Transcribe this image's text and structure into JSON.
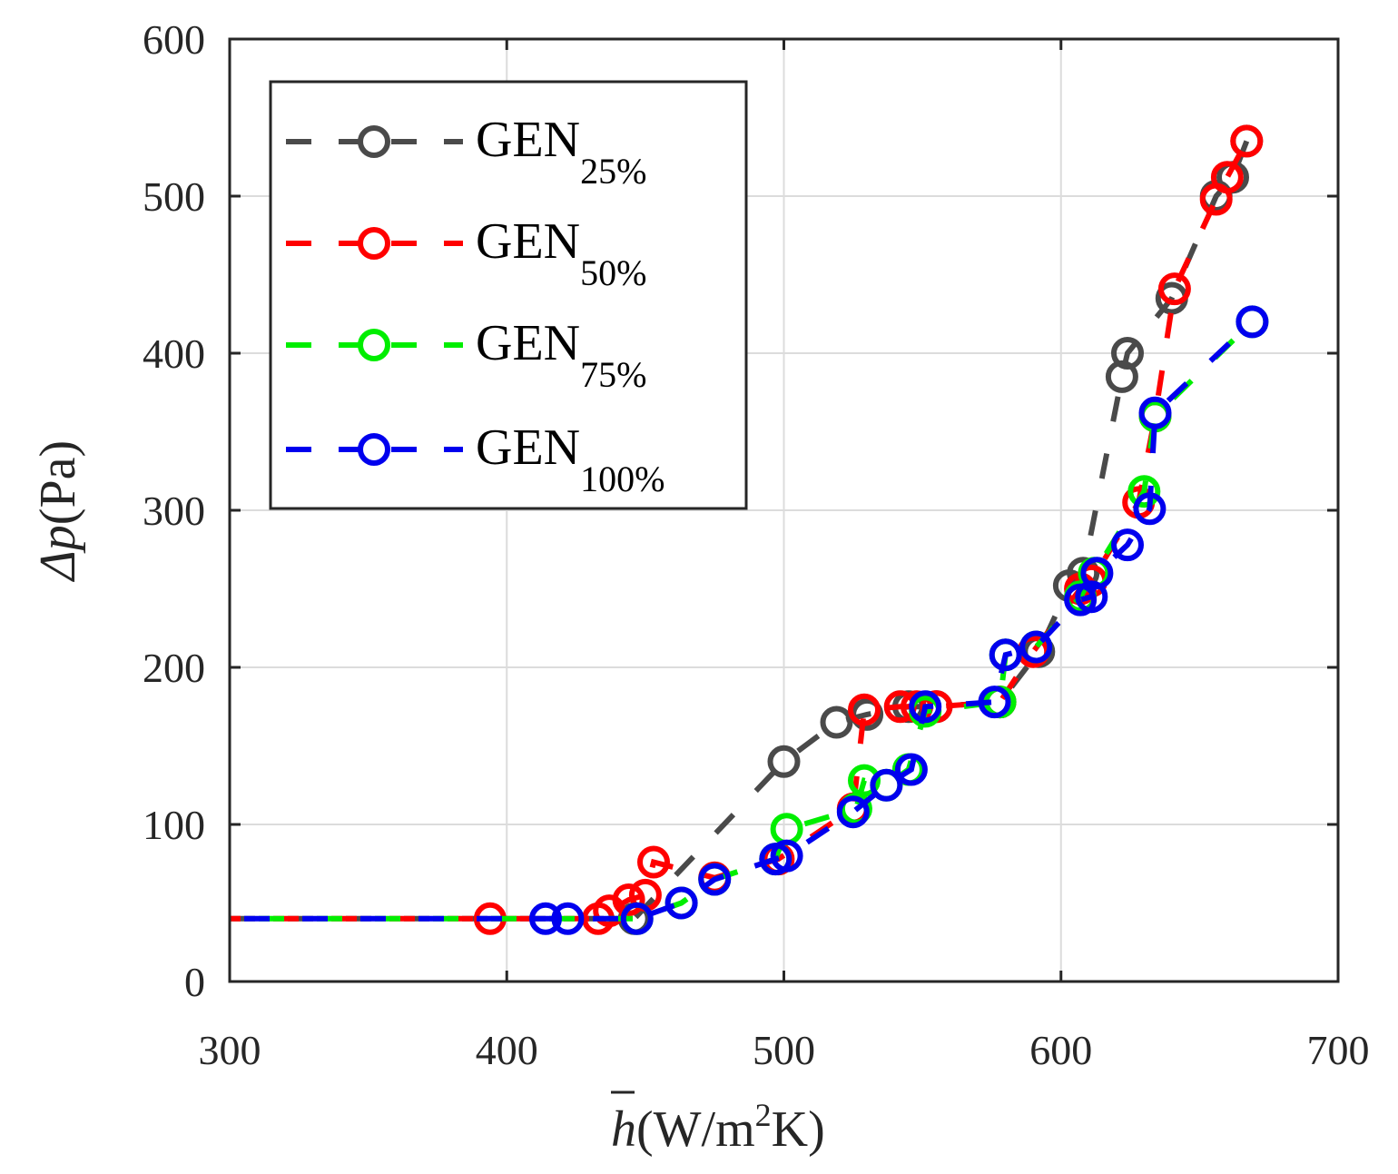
{
  "chart_data": {
    "type": "line",
    "xlabel_main": "h",
    "xlabel_units": "(W/m",
    "xlabel_sup": "2",
    "xlabel_tail": "K)",
    "ylabel_delta": "Δp",
    "ylabel_units": "(Pa)",
    "xlim": [
      300,
      700
    ],
    "ylim": [
      0,
      600
    ],
    "xticks": [
      "300",
      "400",
      "500",
      "600",
      "700"
    ],
    "yticks": [
      "0",
      "100",
      "200",
      "300",
      "400",
      "500",
      "600"
    ],
    "grid": true,
    "legend_position": "top-left",
    "series": [
      {
        "name": "GEN",
        "sub": "25%",
        "color": "#4a4a4a",
        "points": [
          [
            300,
            40
          ],
          [
            446,
            40
          ],
          [
            500,
            140
          ],
          [
            519,
            165
          ],
          [
            530,
            170
          ],
          [
            545,
            175
          ],
          [
            555,
            175
          ],
          [
            578,
            178
          ],
          [
            592,
            210
          ],
          [
            603,
            252
          ],
          [
            608,
            260
          ],
          [
            622,
            385
          ],
          [
            624,
            400
          ],
          [
            640,
            435
          ],
          [
            656,
            500
          ],
          [
            662,
            512
          ],
          [
            667,
            535
          ]
        ]
      },
      {
        "name": "GEN",
        "sub": "50%",
        "color": "#ff0000",
        "points": [
          [
            300,
            40
          ],
          [
            394,
            40
          ],
          [
            433,
            40
          ],
          [
            437,
            45
          ],
          [
            444,
            52
          ],
          [
            450,
            55
          ],
          [
            453,
            76
          ],
          [
            475,
            66
          ],
          [
            498,
            78
          ],
          [
            525,
            110
          ],
          [
            529,
            173
          ],
          [
            542,
            175
          ],
          [
            548,
            175
          ],
          [
            555,
            175
          ],
          [
            578,
            178
          ],
          [
            590,
            210
          ],
          [
            607,
            250
          ],
          [
            611,
            255
          ],
          [
            628,
            305
          ],
          [
            634,
            360
          ],
          [
            641,
            441
          ],
          [
            656,
            498
          ],
          [
            660,
            512
          ],
          [
            667,
            535
          ]
        ]
      },
      {
        "name": "GEN",
        "sub": "75%",
        "color": "#00ee00",
        "points": [
          [
            300,
            40
          ],
          [
            447,
            40
          ],
          [
            463,
            50
          ],
          [
            475,
            65
          ],
          [
            497,
            78
          ],
          [
            501,
            97
          ],
          [
            526,
            110
          ],
          [
            529,
            128
          ],
          [
            537,
            125
          ],
          [
            545,
            135
          ],
          [
            551,
            172
          ],
          [
            578,
            178
          ],
          [
            580,
            208
          ],
          [
            591,
            213
          ],
          [
            607,
            245
          ],
          [
            612,
            260
          ],
          [
            630,
            312
          ],
          [
            634,
            360
          ],
          [
            669,
            420
          ]
        ]
      },
      {
        "name": "GEN",
        "sub": "100%",
        "color": "#0000ee",
        "points": [
          [
            300,
            40
          ],
          [
            414,
            40
          ],
          [
            422,
            40
          ],
          [
            447,
            40
          ],
          [
            463,
            50
          ],
          [
            475,
            65
          ],
          [
            497,
            78
          ],
          [
            501,
            80
          ],
          [
            525,
            108
          ],
          [
            537,
            125
          ],
          [
            546,
            135
          ],
          [
            551,
            175
          ],
          [
            576,
            178
          ],
          [
            580,
            208
          ],
          [
            591,
            213
          ],
          [
            607,
            243
          ],
          [
            611,
            245
          ],
          [
            613,
            260
          ],
          [
            624,
            278
          ],
          [
            632,
            301
          ],
          [
            634,
            362
          ],
          [
            669,
            420
          ]
        ]
      }
    ]
  }
}
